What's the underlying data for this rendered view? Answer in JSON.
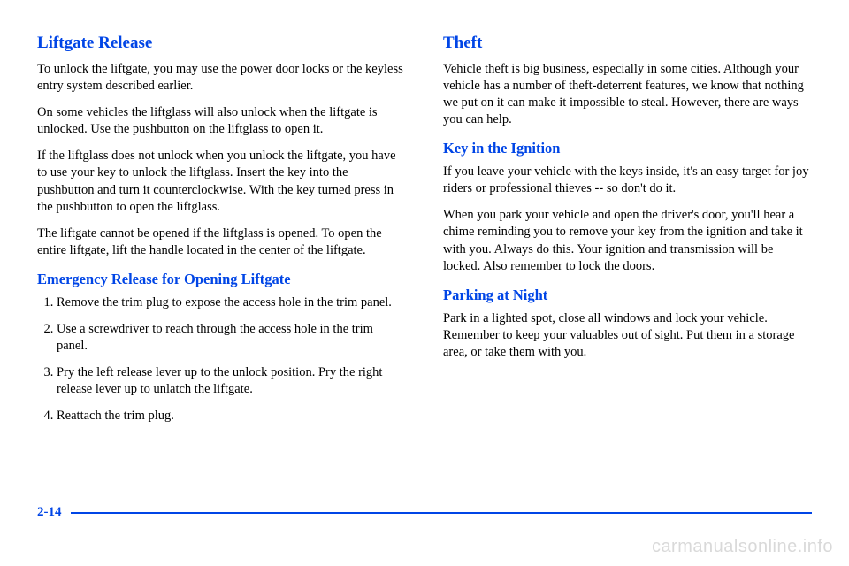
{
  "colors": {
    "heading": "#0045e6",
    "body": "#000000",
    "background": "#ffffff",
    "watermark": "#d9d9d9"
  },
  "font": {
    "body_size": 14.5,
    "heading_lg_size": 19,
    "heading_md_size": 16.5
  },
  "left": {
    "h1": "Liftgate Release",
    "p1": "To unlock the liftgate, you may use the power door locks or the keyless entry system described earlier.",
    "p2": "On some vehicles the liftglass will also unlock when the liftgate is unlocked. Use the pushbutton on the liftglass to open it.",
    "p3": "If the liftglass does not unlock when you unlock the liftgate, you have to use your key to unlock the liftglass. Insert the key into the pushbutton and turn it counterclockwise. With the key turned press in the pushbutton to open the liftglass.",
    "p4": "The liftgate cannot be opened if the liftglass is opened. To open the entire liftgate, lift the handle located in the center of the liftgate.",
    "h2": "Emergency Release for Opening Liftgate",
    "steps": [
      "Remove the trim plug to expose the access hole in the trim panel.",
      "Use a screwdriver to reach through the access hole in the trim panel.",
      "Pry the left release lever up to the unlock position. Pry the right release lever up to unlatch the liftgate.",
      "Reattach the trim plug."
    ]
  },
  "right": {
    "h1": "Theft",
    "p1": "Vehicle theft is big business, especially in some cities. Although your vehicle has a number of theft-deterrent features, we know that nothing we put on it can make it impossible to steal. However, there are ways you can help.",
    "h2": "Key in the Ignition",
    "p2": "If you leave your vehicle with the keys inside, it's an easy target for joy riders or professional thieves -- so don't do it.",
    "p3": "When you park your vehicle and open the driver's door, you'll hear a chime reminding you to remove your key from the ignition and take it with you. Always do this. Your ignition and transmission will be locked. Also remember to lock the doors.",
    "h3": "Parking at Night",
    "p4": "Park in a lighted spot, close all windows and lock your vehicle. Remember to keep your valuables out of sight. Put them in a storage area, or take them with you."
  },
  "page_number": "2-14",
  "watermark": "carmanualsonline.info"
}
